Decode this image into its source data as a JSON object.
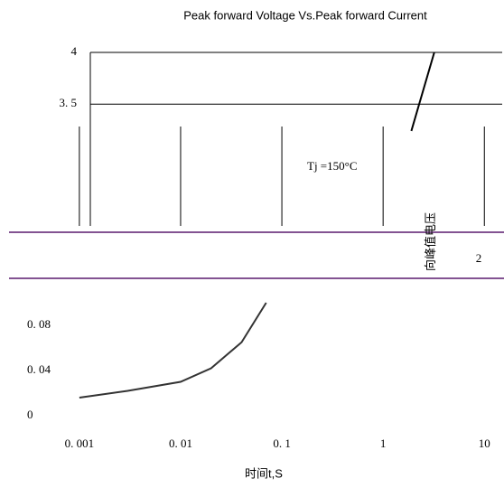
{
  "chart_data": [
    {
      "type": "line",
      "title": "Peak forward Voltage Vs.Peak forward Current",
      "log_x": true,
      "xlim": [
        0.0006,
        15
      ],
      "ylim": [
        1.5,
        4
      ],
      "yticks": [
        {
          "value": 4,
          "label": "4"
        },
        {
          "value": 3.5,
          "label": "3. 5"
        }
      ],
      "y2lim": [
        1.5,
        4
      ],
      "y2ticks": [
        2
      ],
      "annotations": [
        "Tj =150°C",
        "向峰值电压"
      ],
      "grid": true,
      "series": [
        {
          "color": "#000000",
          "x": [
            1.9,
            3.2
          ],
          "values": [
            3.24,
            4
          ]
        }
      ]
    },
    {
      "type": "line",
      "x_label": "时间t,S",
      "log_x": true,
      "xlim": [
        0.0006,
        15
      ],
      "ylim": [
        0,
        0.1
      ],
      "xticks": [
        {
          "value": 0.001,
          "label": "0. 001"
        },
        {
          "value": 0.01,
          "label": "0. 01"
        },
        {
          "value": 0.1,
          "label": "0. 1"
        },
        1,
        10
      ],
      "yticks": [
        0,
        {
          "value": 0.04,
          "label": "0. 04"
        },
        {
          "value": 0.08,
          "label": "0. 08"
        }
      ],
      "series": [
        {
          "color": "#333333",
          "x": [
            0.001,
            0.003,
            0.01,
            0.02,
            0.04,
            0.07
          ],
          "values": [
            0.016,
            0.022,
            0.03,
            0.042,
            0.065,
            0.1
          ]
        }
      ]
    }
  ]
}
